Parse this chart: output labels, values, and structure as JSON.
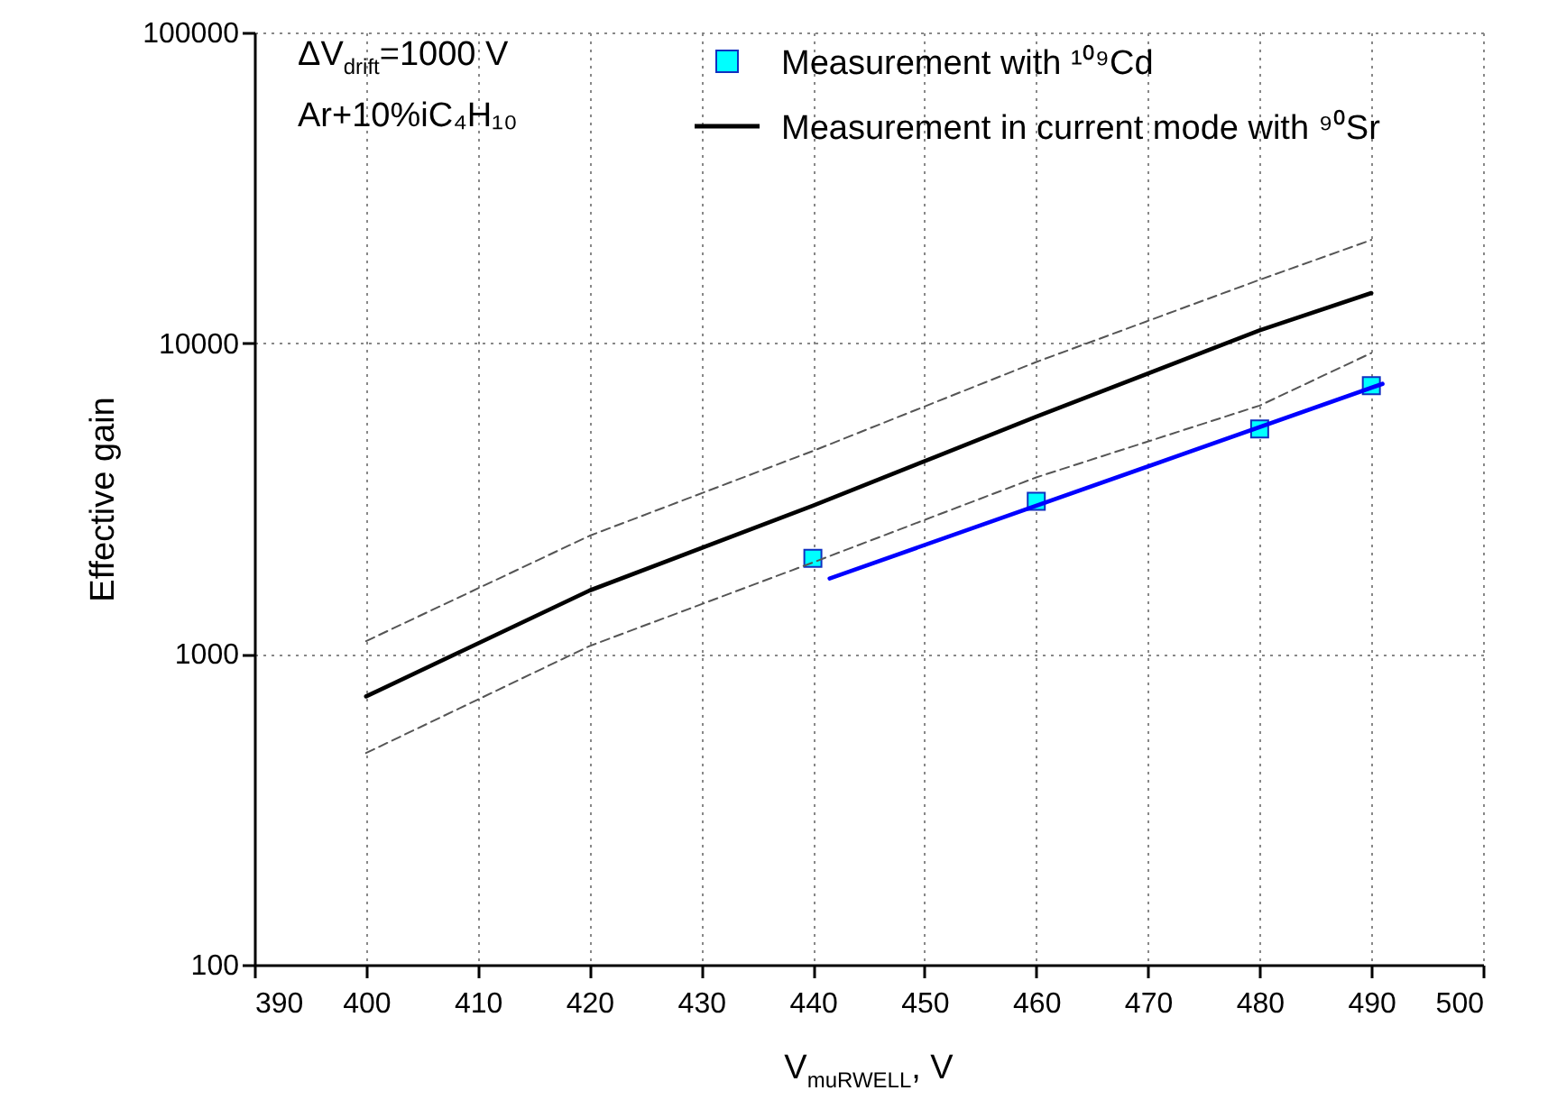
{
  "chart_data": {
    "type": "line",
    "xlabel": "V$_{muRWELL}$, V",
    "ylabel": "Effective gain",
    "annotations": [
      "ΔV$_{drift}$=1000 V",
      "Ar+10%iC₄H₁₀"
    ],
    "x": [
      400,
      420,
      440,
      460,
      480,
      490
    ],
    "series": [
      {
        "name": "Measurement with ¹⁰⁹Cd",
        "type": "scatter",
        "color": "#00ffff",
        "marker": "square",
        "x": [
          440,
          460,
          480,
          490
        ],
        "values": [
          2030,
          3100,
          5300,
          7300
        ]
      },
      {
        "name": "Measurement in current mode with ⁹⁰Sr",
        "color": "#000000",
        "values": [
          730,
          1600,
          3000,
          5800,
          11000,
          14500
        ]
      },
      {
        "color": "#555555",
        "line_style": "dashed",
        "values": [
          1100,
          2400,
          4500,
          8700,
          16000,
          21500
        ]
      },
      {
        "color": "#555555",
        "line_style": "dashed",
        "values": [
          480,
          1060,
          1970,
          3700,
          6300,
          9300
        ]
      },
      {
        "color": "#0000ff",
        "x": [
          441.5,
          491
        ],
        "values": [
          1750,
          7400
        ]
      }
    ],
    "xlim": [
      390,
      500
    ],
    "xticks": [
      390,
      400,
      410,
      420,
      430,
      440,
      450,
      460,
      470,
      480,
      490,
      500
    ],
    "ylim": [
      100,
      100000
    ],
    "yticks": [
      100,
      1000,
      10000,
      100000
    ],
    "log": "y",
    "grid": true,
    "legend": "top"
  }
}
